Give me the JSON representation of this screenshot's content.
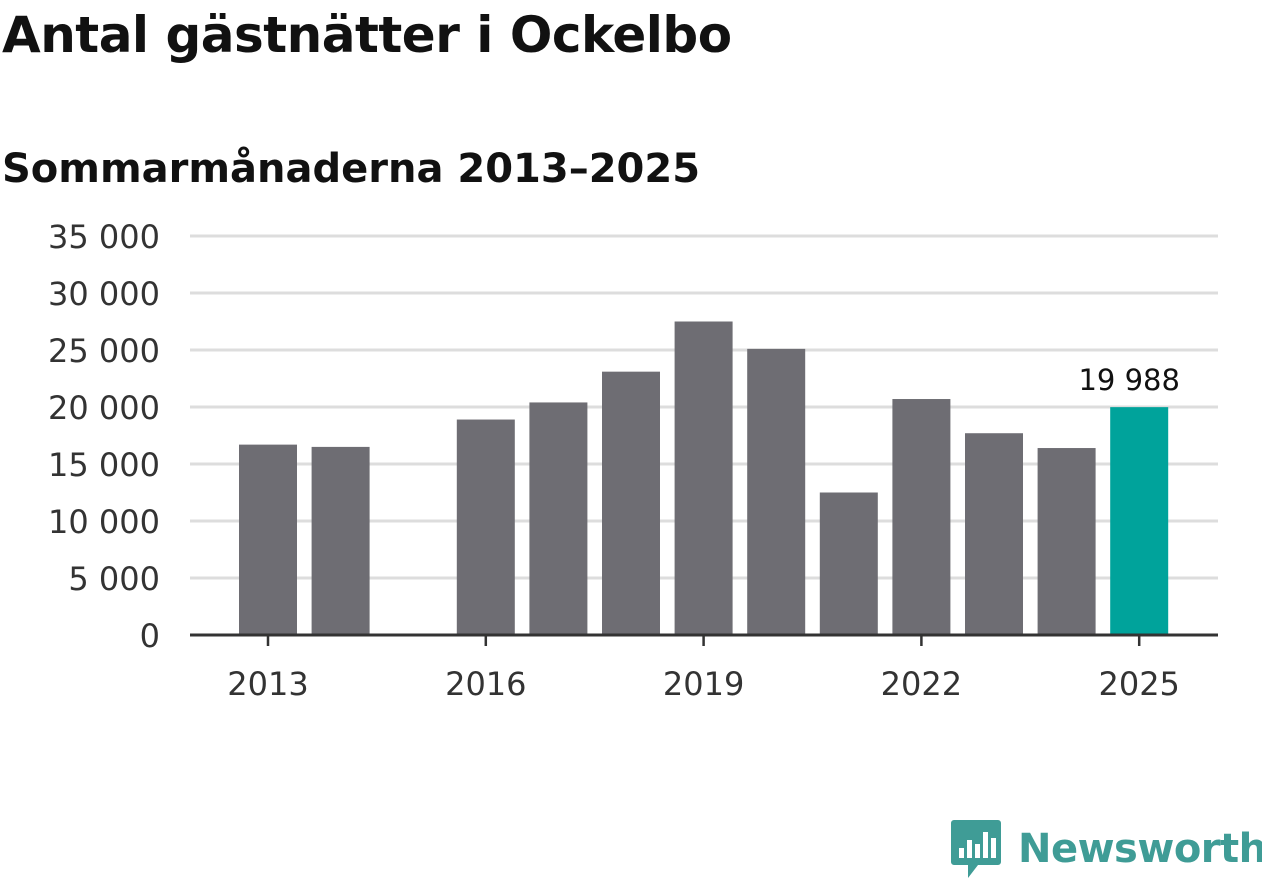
{
  "chart_data": {
    "type": "bar",
    "title": "Antal gästnätter i Ockelbo",
    "subtitle": "Sommarmånaderna 2013–2025",
    "categories": [
      "2013",
      "2014",
      "2015",
      "2016",
      "2017",
      "2018",
      "2019",
      "2020",
      "2021",
      "2022",
      "2023",
      "2024",
      "2025"
    ],
    "values": [
      16700,
      16500,
      null,
      18900,
      20400,
      23100,
      27500,
      25100,
      12500,
      20700,
      17700,
      16400,
      19988
    ],
    "xtick_labels": [
      "2013",
      "2016",
      "2019",
      "2022",
      "2025"
    ],
    "yticks": [
      0,
      5000,
      10000,
      15000,
      20000,
      25000,
      30000,
      35000
    ],
    "ytick_labels": [
      "0",
      "5 000",
      "10 000",
      "15 000",
      "20 000",
      "25 000",
      "30 000",
      "35 000"
    ],
    "ylim": [
      0,
      35000
    ],
    "xlabel": "",
    "ylabel": "",
    "grid": true,
    "highlight": {
      "category": "2025",
      "label": "19 988"
    },
    "colors": {
      "bar": "#6e6d73",
      "highlight": "#00a39b",
      "grid": "#dddddd",
      "axis": "#333333"
    }
  },
  "branding": {
    "logo_text": "Newsworthy",
    "logo_color": "#3f9c96",
    "logo_icon": "newsworthy-bar-chart-icon"
  }
}
